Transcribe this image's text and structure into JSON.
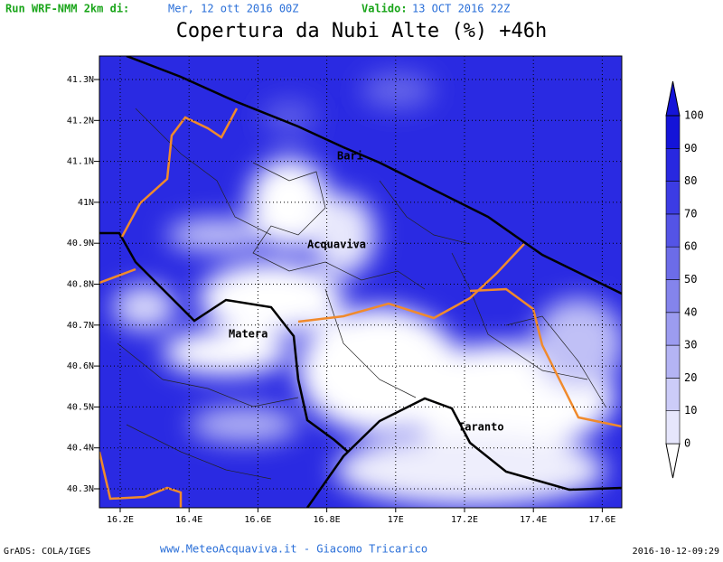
{
  "header": {
    "run_label": "Run WRF-NMM 2km di:",
    "run_date": "Mer, 12 ott 2016 00Z",
    "valid_label": "Valido:",
    "valid_date": "13 OCT 2016 22Z",
    "title": "Copertura da Nubi Alte (%) +46h"
  },
  "map": {
    "lat_labels": [
      "41.3N",
      "41.2N",
      "41.1N",
      "41N",
      "40.9N",
      "40.8N",
      "40.7N",
      "40.6N",
      "40.5N",
      "40.4N",
      "40.3N"
    ],
    "lon_labels": [
      "16.2E",
      "16.4E",
      "16.6E",
      "16.8E",
      "17E",
      "17.2E",
      "17.4E",
      "17.6E"
    ],
    "cities": [
      "Bari",
      "Acquaviva",
      "Matera",
      "Taranto"
    ]
  },
  "colorbar": {
    "labels": [
      "0",
      "10",
      "20",
      "30",
      "40",
      "50",
      "60",
      "70",
      "80",
      "90",
      "100"
    ],
    "colors": [
      "#ffffff",
      "#e6e6fc",
      "#ccccf8",
      "#b4b4f4",
      "#9c9cf0",
      "#8484ec",
      "#6c6ce8",
      "#5454e6",
      "#3c3ce4",
      "#2828e0",
      "#1414d8"
    ]
  },
  "footer": {
    "software": "GrADS: COLA/IGES",
    "credit": "www.MeteoAcquaviva.it - Giacomo Tricarico",
    "timestamp": "2016-10-12-09:29"
  }
}
